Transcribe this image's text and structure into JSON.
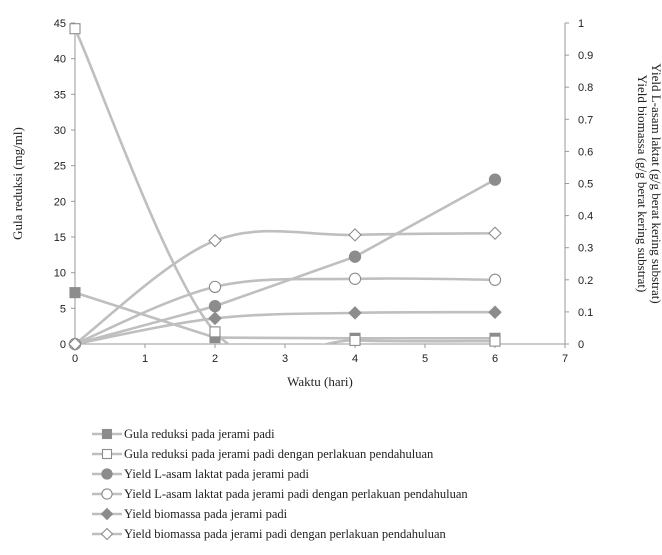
{
  "chart_data": {
    "type": "line",
    "xlabel": "Waktu (hari)",
    "ylabel_left": "Gula reduksi (mg/ml)",
    "ylabel_right_1": "Yield biomassa  (g/g berat kering substrat)",
    "ylabel_right_2": "Yield L-asam laktat (g/g berat kering substrat)",
    "xlim": [
      0,
      7
    ],
    "ylim_left": [
      0,
      45
    ],
    "ylim_right": [
      0,
      1
    ],
    "x_ticks": [
      0,
      1,
      2,
      3,
      4,
      5,
      6,
      7
    ],
    "y_left_ticks": [
      0,
      5,
      10,
      15,
      20,
      25,
      30,
      35,
      40,
      45
    ],
    "y_right_ticks": [
      "0",
      "0.1",
      "0.2",
      "0.3",
      "0.4",
      "0.5",
      "0.6",
      "0.7",
      "0.8",
      "0.9",
      "1"
    ],
    "grid": false,
    "legend_position": "bottom",
    "series": [
      {
        "name": "Gula reduksi pada jerami padi",
        "axis": "left",
        "marker": "square-filled",
        "smooth": false,
        "x": [
          0,
          2,
          4,
          6
        ],
        "y": [
          7.2,
          0.9,
          0.8,
          0.8
        ]
      },
      {
        "name": "Gula reduksi pada jerami padi dengan perlakuan pendahuluan",
        "axis": "left",
        "marker": "square-open",
        "smooth": true,
        "x": [
          0,
          2,
          4,
          6
        ],
        "y": [
          44.2,
          1.7,
          0.5,
          0.4
        ]
      },
      {
        "name": "Yield L-asam laktat pada jerami padi",
        "axis": "right",
        "marker": "circle-filled",
        "smooth": false,
        "x": [
          0,
          2,
          4,
          6
        ],
        "y": [
          0,
          0.118,
          0.272,
          0.512
        ]
      },
      {
        "name": "Yield L-asam laktat pada jerami padi dengan perlakuan pendahuluan",
        "axis": "right",
        "marker": "circle-open",
        "smooth": true,
        "x": [
          0,
          2,
          4,
          6
        ],
        "y": [
          0,
          0.178,
          0.203,
          0.2
        ]
      },
      {
        "name": "Yield biomassa pada jerami padi",
        "axis": "right",
        "marker": "diamond-filled",
        "smooth": true,
        "x": [
          0,
          2,
          4,
          6
        ],
        "y": [
          0,
          0.08,
          0.097,
          0.099
        ]
      },
      {
        "name": "Yield biomassa pada jerami padi dengan perlakuan pendahuluan",
        "axis": "right",
        "marker": "diamond-open",
        "smooth": true,
        "x": [
          0,
          2,
          4,
          6
        ],
        "y": [
          0,
          0.322,
          0.34,
          0.345
        ]
      }
    ],
    "colors": {
      "line": "#bfbfbf",
      "marker": "#8c8c8c",
      "axis": "#9a9a9a"
    }
  }
}
